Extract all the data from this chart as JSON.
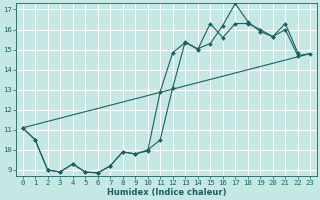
{
  "title": "",
  "xlabel": "Humidex (Indice chaleur)",
  "bg_color": "#c5e8e5",
  "grid_color": "#ffffff",
  "line_color": "#1a6060",
  "xlim": [
    -0.5,
    23.5
  ],
  "ylim": [
    8.7,
    17.3
  ],
  "yticks": [
    9,
    10,
    11,
    12,
    13,
    14,
    15,
    16,
    17
  ],
  "xticks": [
    0,
    1,
    2,
    3,
    4,
    5,
    6,
    7,
    8,
    9,
    10,
    11,
    12,
    13,
    14,
    15,
    16,
    17,
    18,
    19,
    20,
    21,
    22,
    23
  ],
  "line1_x": [
    0,
    1,
    2,
    3,
    4,
    5,
    6,
    7,
    8,
    9,
    10,
    11,
    12,
    13,
    14,
    15,
    16,
    17,
    18,
    19,
    20,
    21,
    22
  ],
  "line1_y": [
    11.1,
    10.5,
    9.0,
    8.9,
    9.3,
    8.9,
    8.85,
    9.2,
    9.9,
    9.8,
    9.95,
    12.9,
    14.85,
    15.35,
    15.05,
    15.3,
    16.2,
    17.3,
    16.4,
    15.9,
    15.65,
    16.3,
    14.85
  ],
  "line2_x": [
    0,
    1,
    2,
    3,
    4,
    5,
    6,
    7,
    8,
    9,
    10,
    11,
    12,
    13,
    14,
    15,
    16,
    17,
    18,
    19,
    20,
    21,
    22,
    23
  ],
  "line2_y": [
    11.1,
    10.5,
    9.0,
    8.9,
    9.3,
    8.9,
    8.85,
    9.2,
    9.9,
    9.8,
    10.0,
    10.5,
    13.1,
    15.4,
    15.0,
    16.3,
    15.6,
    16.3,
    16.3,
    16.0,
    15.65,
    16.0,
    14.7,
    14.8
  ],
  "line3_x": [
    0,
    23
  ],
  "line3_y": [
    11.1,
    14.8
  ],
  "marker_size": 2.0,
  "linewidth": 0.8,
  "tick_fontsize": 5.2,
  "xlabel_fontsize": 6.0
}
